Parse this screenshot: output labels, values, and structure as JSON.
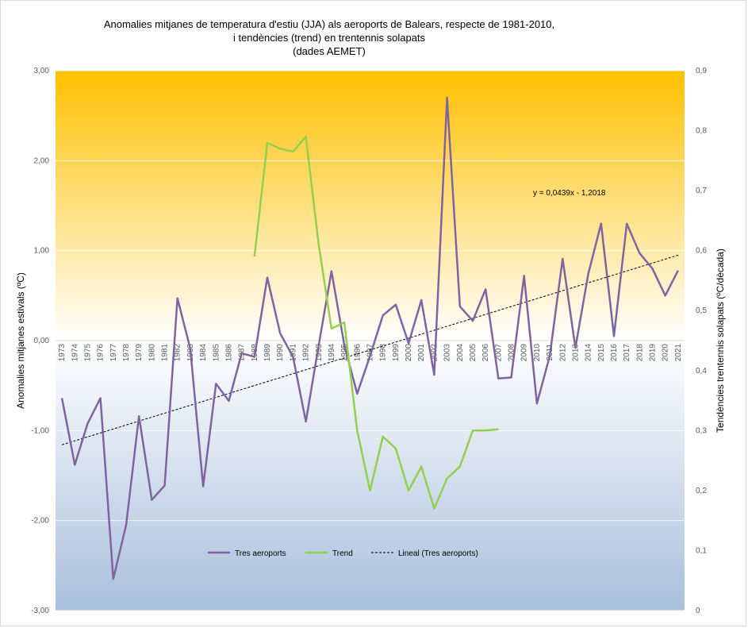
{
  "chart_data": {
    "type": "line",
    "title_lines": [
      "Anomalies mitjanes de temperatura d'estiu (JJA) als aeroports de Balears, respecte de 1981-2010,",
      "i tendències (trend) en trentennis solapats",
      "(dades AEMET)"
    ],
    "ylabel": "Anomalies mitjanes estivals (ºC)",
    "y2label": "Tendències trentennis solapats (ºC/dècada)",
    "ylim": [
      -3,
      3
    ],
    "y2lim": [
      0,
      0.9
    ],
    "yticks": [
      "3,00",
      "2,00",
      "1,00",
      "0,00",
      "-1,00",
      "-2,00",
      "-3,00"
    ],
    "y2ticks": [
      "0,9",
      "0,8",
      "0,7",
      "0,6",
      "0,5",
      "0,4",
      "0,3",
      "0,2",
      "0,1",
      "0"
    ],
    "x": [
      "1973",
      "1974",
      "1975",
      "1976",
      "1977",
      "1978",
      "1979",
      "1980",
      "1981",
      "1982",
      "1983",
      "1984",
      "1985",
      "1986",
      "1987",
      "1988",
      "1989",
      "1990",
      "1991",
      "1992",
      "1993",
      "1994",
      "1995",
      "1996",
      "1997",
      "1998",
      "1999",
      "2000",
      "2001",
      "2002",
      "2003",
      "2004",
      "2005",
      "2006",
      "2007",
      "2008",
      "2009",
      "2010",
      "2011",
      "2012",
      "2013",
      "2014",
      "2015",
      "2016",
      "2017",
      "2018",
      "2019",
      "2020",
      "2021"
    ],
    "series": [
      {
        "name": "Tres aeroports",
        "axis": "left",
        "color": "#8064a2",
        "values": [
          -0.64,
          -1.38,
          -0.92,
          -0.64,
          -2.65,
          -2.05,
          -0.84,
          -1.77,
          -1.61,
          0.47,
          -0.09,
          -1.62,
          -0.48,
          -0.67,
          -0.14,
          -0.18,
          0.7,
          0.08,
          -0.18,
          -0.9,
          -0.05,
          0.77,
          -0.05,
          -0.59,
          -0.17,
          0.28,
          0.4,
          -0.03,
          0.45,
          -0.38,
          2.7,
          0.38,
          0.22,
          0.57,
          -0.42,
          -0.41,
          0.72,
          -0.7,
          -0.17,
          0.91,
          -0.08,
          0.74,
          1.3,
          0.05,
          1.3,
          0.97,
          0.8,
          0.5,
          0.78
        ]
      },
      {
        "name": "Trend",
        "axis": "right",
        "color": "#92d050",
        "values": [
          null,
          null,
          null,
          null,
          null,
          null,
          null,
          null,
          null,
          null,
          null,
          null,
          null,
          null,
          null,
          0.59,
          0.78,
          0.77,
          0.765,
          0.79,
          0.61,
          0.47,
          0.48,
          0.3,
          0.2,
          0.29,
          0.27,
          0.2,
          0.24,
          0.17,
          0.22,
          0.24,
          0.3,
          0.3,
          0.302,
          null,
          null,
          null,
          null,
          null,
          null,
          null,
          null,
          null,
          null,
          null,
          null,
          null,
          null
        ]
      }
    ],
    "trendline": {
      "name": "Lineal  (Tres aeroports)",
      "equation": "y = 0,0439x - 1,2018",
      "slope": 0.0439,
      "intercept": -1.2018,
      "color": "#000000"
    },
    "background_gradient": {
      "top": "#ffc000",
      "middle": "#ffffff",
      "bottom": "#a9bfdc"
    },
    "grid": true,
    "legend_position": "bottom"
  }
}
